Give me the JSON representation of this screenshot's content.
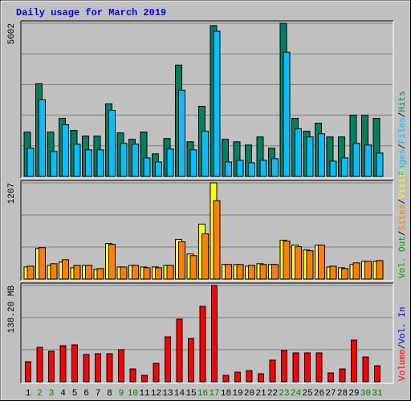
{
  "title": "Daily usage for March 2019",
  "chart_data": [
    {
      "type": "bar",
      "ylim": [
        0,
        5602
      ],
      "yticks": [
        5602
      ],
      "grid": true,
      "series": [
        {
          "name": "Hits",
          "color": "#008060",
          "values": [
            1622,
            3392,
            1622,
            2124,
            1681,
            1475,
            1475,
            2655,
            1593,
            1357,
            1622,
            826,
            1386,
            4071,
            1268,
            2566,
            5516,
            1357,
            1268,
            1150,
            1445,
            1032,
            5602,
            2124,
            1652,
            1947,
            1445,
            1445,
            2242,
            2242,
            2124
          ]
        },
        {
          "name": "Files",
          "color": "#00c0ff",
          "values": [
            1032,
            2802,
            914,
            1888,
            1180,
            973,
            973,
            2419,
            1209,
            1180,
            678,
            531,
            1003,
            3156,
            973,
            1652,
            5310,
            531,
            590,
            501,
            590,
            649,
            4543,
            1740,
            1445,
            1563,
            560,
            678,
            1209,
            1150,
            855
          ]
        }
      ],
      "legend_only": [
        {
          "name": "Pages",
          "color": "#00c0ff"
        }
      ]
    },
    {
      "type": "bar",
      "ylim": [
        0,
        1207
      ],
      "yticks": [
        1207
      ],
      "grid": true,
      "series": [
        {
          "name": "Visits",
          "color": "#ffff00",
          "values": [
            152,
            385,
            172,
            213,
            142,
            172,
            122,
            446,
            152,
            172,
            152,
            152,
            172,
            497,
            314,
            690,
            1207,
            183,
            183,
            162,
            193,
            183,
            487,
            426,
            365,
            426,
            152,
            142,
            183,
            223,
            223
          ]
        },
        {
          "name": "Sites",
          "color": "#ff8000",
          "values": [
            162,
            395,
            193,
            243,
            172,
            172,
            132,
            436,
            152,
            172,
            142,
            142,
            172,
            467,
            294,
            568,
            984,
            183,
            183,
            172,
            183,
            183,
            477,
            406,
            355,
            426,
            162,
            132,
            203,
            223,
            233
          ]
        }
      ],
      "legend_only": [
        {
          "name": "Vol. Out",
          "color": "#00a000"
        }
      ]
    },
    {
      "type": "bar",
      "ylim": [
        0,
        138.2
      ],
      "yticks": [
        {
          "value": 138.2,
          "label": "138.20 MB"
        }
      ],
      "grid": true,
      "categories": [
        "1",
        "2",
        "3",
        "4",
        "5",
        "6",
        "7",
        "8",
        "9",
        "10",
        "11",
        "12",
        "13",
        "14",
        "15",
        "16",
        "17",
        "18",
        "19",
        "20",
        "21",
        "22",
        "23",
        "24",
        "25",
        "26",
        "27",
        "28",
        "29",
        "30",
        "31"
      ],
      "category_colors": [
        "#000000",
        "#008000",
        "#008000",
        "#000000",
        "#000000",
        "#000000",
        "#000000",
        "#000000",
        "#008000",
        "#008000",
        "#000000",
        "#000000",
        "#000000",
        "#000000",
        "#000000",
        "#008000",
        "#008000",
        "#000000",
        "#000000",
        "#000000",
        "#000000",
        "#000000",
        "#008000",
        "#008000",
        "#000000",
        "#000000",
        "#000000",
        "#000000",
        "#000000",
        "#008000",
        "#008000"
      ],
      "series": [
        {
          "name": "Volume",
          "color": "#ff0000",
          "values": [
            28.8,
            49.5,
            43.8,
            51.8,
            53.0,
            39.2,
            40.3,
            40.3,
            46.1,
            18.4,
            9.2,
            26.5,
            64.5,
            89.9,
            62.2,
            108.3,
            138.2,
            9.2,
            13.8,
            16.1,
            11.5,
            31.1,
            44.9,
            41.5,
            41.5,
            41.5,
            12.7,
            18.4,
            59.9,
            35.7,
            23.0
          ]
        }
      ],
      "legend_only": [
        {
          "name": "Vol. In",
          "color": "#0000ff"
        }
      ]
    }
  ],
  "legend_separator": "/"
}
